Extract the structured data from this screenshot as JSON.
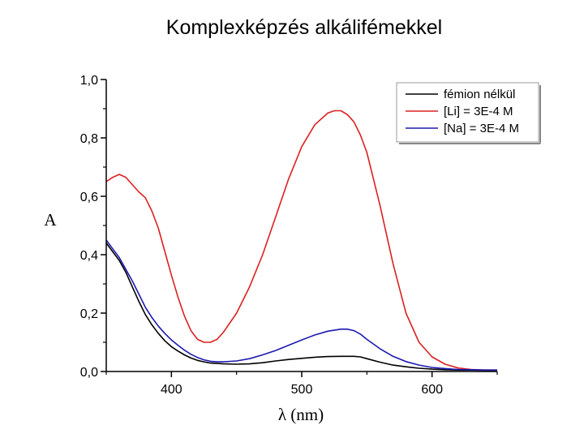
{
  "slide": {
    "title": "Komplexképzés alkálifémekkel"
  },
  "chart_data": {
    "type": "line",
    "title": "",
    "xlabel": "λ (nm)",
    "ylabel": "A",
    "xlim": [
      350,
      650
    ],
    "ylim": [
      0,
      1.0
    ],
    "xticks": [
      400,
      500,
      600
    ],
    "xtick_labels": [
      "400",
      "500",
      "600"
    ],
    "yticks": [
      0,
      0.2,
      0.4,
      0.6,
      0.8,
      1.0
    ],
    "ytick_labels": [
      "0,0",
      "0,2",
      "0,4",
      "0,6",
      "0,8",
      "1,0"
    ],
    "grid": false,
    "legend_position": "top-right",
    "series": [
      {
        "name": "fémion nélkül",
        "color": "#000000",
        "x": [
          350,
          355,
          360,
          365,
          370,
          375,
          380,
          385,
          390,
          395,
          400,
          405,
          410,
          415,
          420,
          425,
          430,
          440,
          450,
          460,
          470,
          480,
          490,
          500,
          510,
          520,
          530,
          540,
          545,
          550,
          560,
          570,
          580,
          590,
          600,
          610,
          620,
          630,
          640,
          650
        ],
        "y": [
          0.44,
          0.41,
          0.38,
          0.34,
          0.29,
          0.24,
          0.195,
          0.16,
          0.13,
          0.105,
          0.085,
          0.07,
          0.057,
          0.046,
          0.038,
          0.033,
          0.029,
          0.026,
          0.025,
          0.026,
          0.03,
          0.036,
          0.041,
          0.045,
          0.049,
          0.051,
          0.052,
          0.052,
          0.05,
          0.044,
          0.032,
          0.022,
          0.016,
          0.011,
          0.008,
          0.006,
          0.005,
          0.005,
          0.004,
          0.004
        ]
      },
      {
        "name": "[Li] = 3E-4 M",
        "color": "#dc2020",
        "x": [
          350,
          355,
          360,
          365,
          370,
          375,
          380,
          385,
          390,
          395,
          400,
          405,
          410,
          415,
          420,
          425,
          430,
          435,
          440,
          450,
          460,
          470,
          480,
          490,
          500,
          510,
          520,
          525,
          530,
          535,
          540,
          545,
          550,
          560,
          570,
          580,
          590,
          600,
          610,
          620,
          630,
          640,
          650
        ],
        "y": [
          0.65,
          0.665,
          0.675,
          0.665,
          0.64,
          0.615,
          0.595,
          0.55,
          0.49,
          0.41,
          0.33,
          0.255,
          0.19,
          0.14,
          0.11,
          0.1,
          0.1,
          0.11,
          0.135,
          0.2,
          0.29,
          0.4,
          0.53,
          0.66,
          0.77,
          0.845,
          0.885,
          0.893,
          0.893,
          0.88,
          0.855,
          0.81,
          0.75,
          0.57,
          0.37,
          0.2,
          0.1,
          0.05,
          0.025,
          0.012,
          0.007,
          0.005,
          0.005
        ]
      },
      {
        "name": "[Na] = 3E-4 M",
        "color": "#1a1ab0",
        "x": [
          350,
          355,
          360,
          365,
          370,
          375,
          380,
          385,
          390,
          395,
          400,
          405,
          410,
          415,
          420,
          425,
          430,
          435,
          440,
          450,
          460,
          470,
          480,
          490,
          500,
          510,
          520,
          530,
          535,
          540,
          545,
          550,
          560,
          570,
          580,
          590,
          600,
          610,
          620,
          630,
          640,
          650
        ],
        "y": [
          0.45,
          0.42,
          0.39,
          0.35,
          0.31,
          0.265,
          0.22,
          0.185,
          0.155,
          0.13,
          0.108,
          0.09,
          0.073,
          0.059,
          0.048,
          0.04,
          0.035,
          0.033,
          0.033,
          0.036,
          0.044,
          0.057,
          0.072,
          0.09,
          0.108,
          0.125,
          0.138,
          0.145,
          0.145,
          0.14,
          0.128,
          0.11,
          0.078,
          0.052,
          0.034,
          0.022,
          0.014,
          0.01,
          0.007,
          0.006,
          0.005,
          0.005
        ]
      }
    ]
  }
}
